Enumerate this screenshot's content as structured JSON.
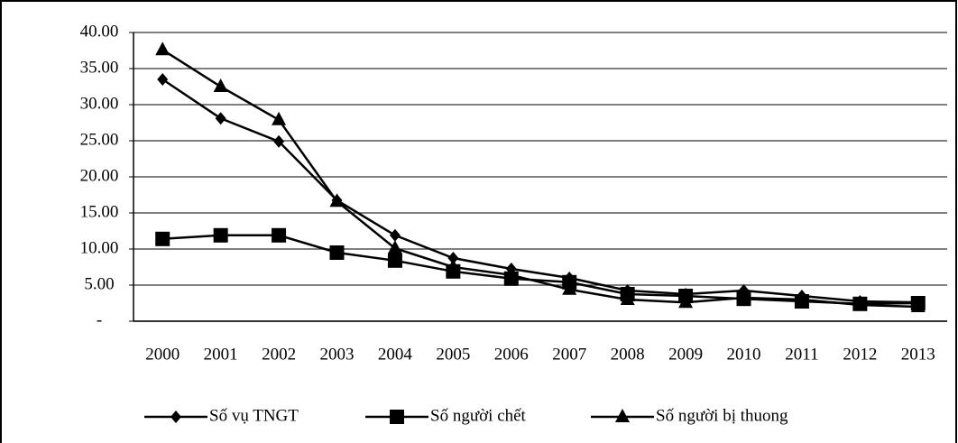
{
  "chart_data": {
    "type": "line",
    "categories": [
      "2000",
      "2001",
      "2002",
      "2003",
      "2004",
      "2005",
      "2006",
      "2007",
      "2008",
      "2009",
      "2010",
      "2011",
      "2012",
      "2013"
    ],
    "series": [
      {
        "name": "Số vụ TNGT",
        "color": "#000000",
        "marker": "diamond",
        "values": [
          33.5,
          28.1,
          24.9,
          16.75,
          11.9,
          8.75,
          7.25,
          6.0,
          4.25,
          3.75,
          4.25,
          3.5,
          2.75,
          2.6
        ]
      },
      {
        "name": "Số người chết",
        "color": "#000000",
        "marker": "square",
        "values": [
          11.4,
          11.9,
          11.9,
          9.5,
          8.4,
          6.9,
          5.9,
          5.4,
          3.75,
          3.5,
          3.1,
          2.75,
          2.4,
          2.5
        ]
      },
      {
        "name": "Số người bị thuong",
        "color": "#000000",
        "marker": "triangle",
        "values": [
          37.6,
          32.5,
          27.9,
          16.6,
          10.1,
          7.5,
          6.4,
          4.4,
          3.0,
          2.6,
          3.25,
          3.0,
          2.25,
          2.0
        ]
      }
    ],
    "ylim": [
      0,
      40
    ],
    "yticks": [
      {
        "value": 0,
        "label": "-"
      },
      {
        "value": 5,
        "label": "5.00"
      },
      {
        "value": 10,
        "label": "10.00"
      },
      {
        "value": 15,
        "label": "15.00"
      },
      {
        "value": 20,
        "label": "20.00"
      },
      {
        "value": 25,
        "label": "25.00"
      },
      {
        "value": 30,
        "label": "30.00"
      },
      {
        "value": 35,
        "label": "35.00"
      },
      {
        "value": 40,
        "label": "40.00"
      }
    ],
    "grid": true,
    "legend": "bottom"
  }
}
